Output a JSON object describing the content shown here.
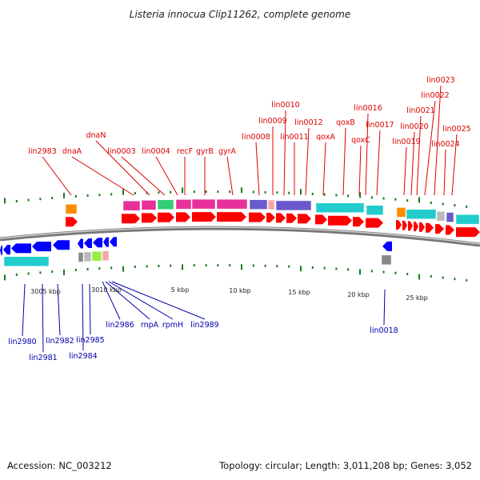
{
  "title": "Listeria innocua Clip11262, complete genome",
  "footer": {
    "accession": "Accession: NC_003212",
    "topology": "Topology: circular; Length: 3,011,208 bp; Genes: 3,052"
  },
  "scale_labels": [
    "3005 kbp",
    "3010 kbp",
    "5 kbp",
    "10 kbp",
    "15 kbp",
    "20 kbp",
    "25 kbp"
  ],
  "forward_genes": [
    "lin2983",
    "dnaA",
    "dnaN",
    "lin0003",
    "lin0004",
    "recF",
    "gyrB",
    "gyrA",
    "lin0008",
    "lin0009",
    "lin0010",
    "lin0011",
    "lin0012",
    "qoxA",
    "qoxB",
    "qoxC",
    "lin0016",
    "lin0017",
    "lin0019",
    "lin0020",
    "lin0021",
    "lin0022",
    "lin0023",
    "lin0024",
    "lin0025"
  ],
  "reverse_genes": [
    "lin2980",
    "lin2981",
    "lin2982",
    "lin2984",
    "lin2985",
    "lin2986",
    "rnpA",
    "rpmH",
    "lin2989",
    "lin0018"
  ],
  "colors": {
    "forward_gene": "#ff0000",
    "reverse_gene": "#0000ff",
    "backbone": "#888888",
    "tick": "#1a7a1a",
    "label_forward": "#dd0000",
    "label_reverse": "#0000aa",
    "cog_magenta": "#e8309a",
    "cog_green": "#33cc77",
    "cog_purple": "#6a5acd",
    "cog_pink": "#f4a6a6",
    "cog_cyan": "#22cccc",
    "cog_orange": "#ff8c00",
    "cog_gray": "#888888",
    "cog_lightgray": "#bbbbbb",
    "cog_lime": "#99ee44"
  }
}
